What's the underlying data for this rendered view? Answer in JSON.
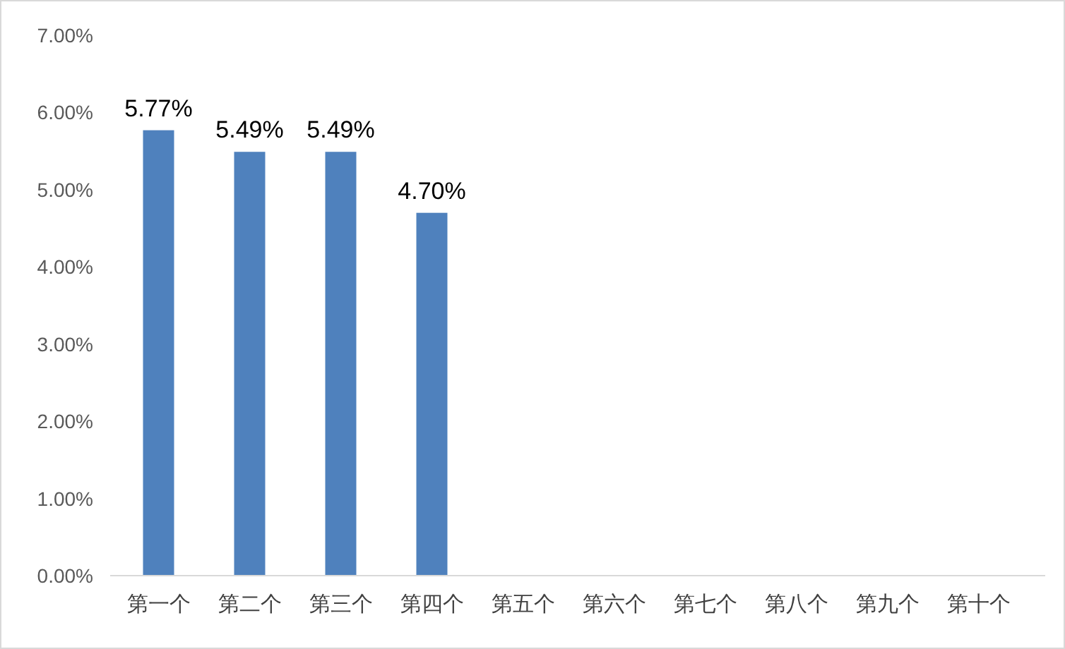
{
  "chart_data": {
    "type": "bar",
    "categories": [
      "第一个",
      "第二个",
      "第三个",
      "第四个",
      "第五个",
      "第六个",
      "第七个",
      "第八个",
      "第九个",
      "第十个"
    ],
    "values": [
      5.77,
      5.49,
      5.49,
      4.7,
      null,
      null,
      null,
      null,
      null,
      null
    ],
    "value_labels": [
      "5.77%",
      "5.49%",
      "5.49%",
      "4.70%",
      null,
      null,
      null,
      null,
      null,
      null
    ],
    "color": "#4f81bd",
    "ylim": [
      0,
      7
    ],
    "yticks": [
      {
        "value": 0,
        "label": "0.00%"
      },
      {
        "value": 1,
        "label": "1.00%"
      },
      {
        "value": 2,
        "label": "2.00%"
      },
      {
        "value": 3,
        "label": "3.00%"
      },
      {
        "value": 4,
        "label": "4.00%"
      },
      {
        "value": 5,
        "label": "5.00%"
      },
      {
        "value": 6,
        "label": "6.00%"
      },
      {
        "value": 7,
        "label": "7.00%"
      }
    ]
  }
}
